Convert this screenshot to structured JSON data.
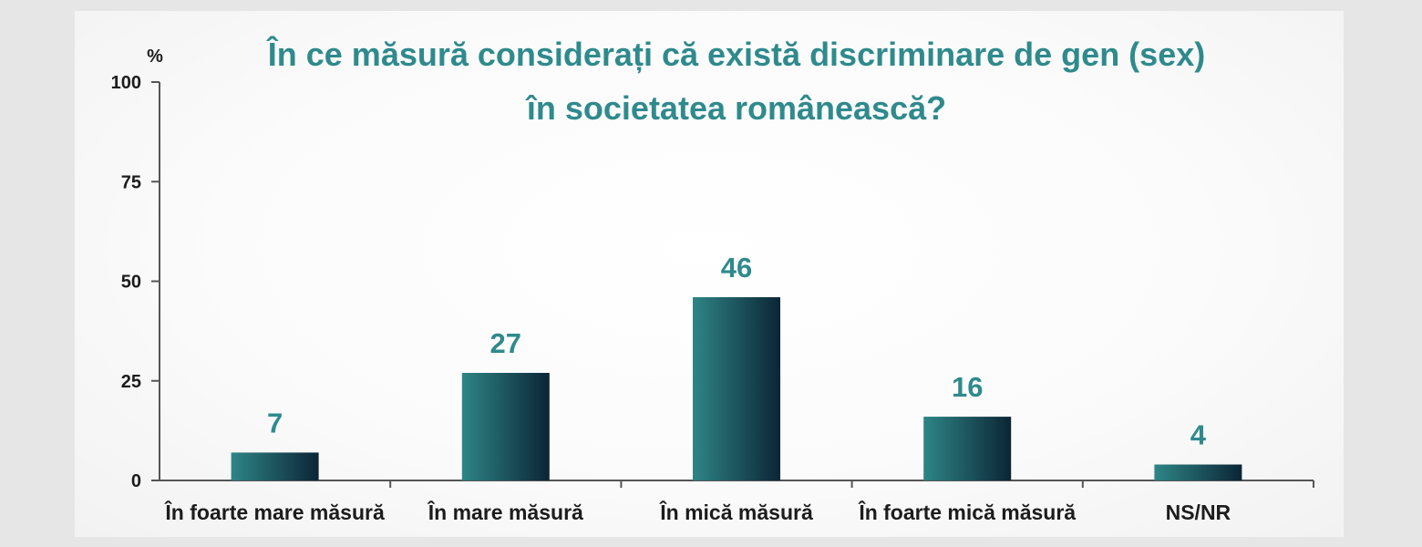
{
  "chart_data": {
    "type": "bar",
    "title_lines": [
      "În ce măsură considerați că există discriminare de gen (sex)",
      "în societatea românească?"
    ],
    "y_unit": "%",
    "ylim": [
      0,
      100
    ],
    "yticks": [
      0,
      25,
      50,
      75,
      100
    ],
    "categories": [
      "În foarte mare măsură",
      "În mare măsură",
      "În mică măsură",
      "În foarte mică măsură",
      "NS/NR"
    ],
    "values": [
      7,
      27,
      46,
      16,
      4
    ],
    "grid": false,
    "legend": "none",
    "bar_gradient": [
      "#2e8586",
      "#0b2536"
    ],
    "accent_color": "#2f8a8c"
  }
}
